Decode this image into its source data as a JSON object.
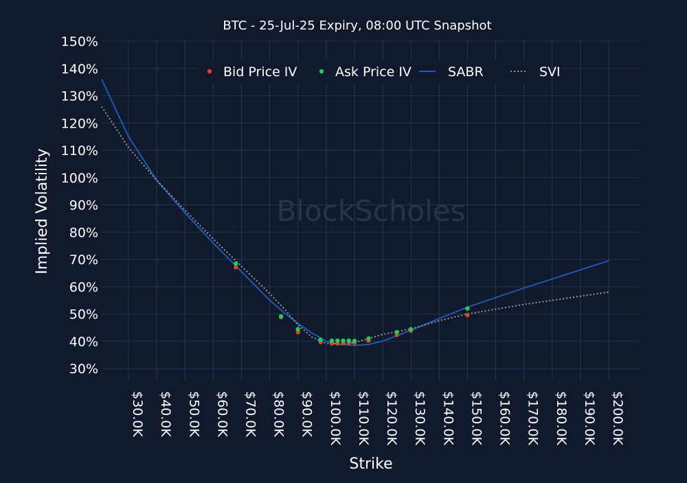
{
  "chart_data": {
    "type": "scatter",
    "title": "BTC - 25-Jul-25 Expiry, 08:00 UTC Snapshot",
    "xlabel": "Strike",
    "ylabel": "Implied Volatility",
    "watermark": "BlockScholes",
    "xlim": [
      20.5,
      210.7
    ],
    "ylim": [
      25.5,
      150
    ],
    "grid": true,
    "legend_position": "top-center",
    "x_ticks": [
      30,
      40,
      50,
      60,
      70,
      80,
      90,
      100,
      110,
      120,
      130,
      140,
      150,
      160,
      170,
      180,
      190,
      200
    ],
    "x_tick_labels": [
      "$30.0K",
      "$40.0K",
      "$50.0K",
      "$60.0K",
      "$70.0K",
      "$80.0K",
      "$90.0K",
      "$100.0K",
      "$110.0K",
      "$120.0K",
      "$130.0K",
      "$140.0K",
      "$150.0K",
      "$160.0K",
      "$170.0K",
      "$180.0K",
      "$190.0K",
      "$200.0K"
    ],
    "y_ticks": [
      30,
      40,
      50,
      60,
      70,
      80,
      90,
      100,
      110,
      120,
      130,
      140,
      150
    ],
    "y_tick_labels": [
      "30%",
      "40%",
      "50%",
      "60%",
      "70%",
      "80%",
      "90%",
      "100%",
      "110%",
      "120%",
      "130%",
      "140%",
      "150%"
    ],
    "series": [
      {
        "name": "Bid Price IV",
        "kind": "points",
        "color": "#e0402a",
        "x": [
          68,
          84,
          90,
          98,
          102,
          104,
          106,
          108,
          110,
          115,
          125,
          130,
          150
        ],
        "y": [
          67.1,
          48.8,
          43.3,
          39.7,
          39.2,
          39.2,
          39.4,
          39.4,
          39.5,
          40.2,
          42.3,
          43.9,
          49.6
        ]
      },
      {
        "name": "Ask Price IV",
        "kind": "points",
        "color": "#22cc55",
        "x": [
          68,
          84,
          90,
          98,
          102,
          104,
          106,
          108,
          110,
          115,
          125,
          130,
          150
        ],
        "y": [
          68.4,
          49.1,
          44.4,
          40.5,
          40.2,
          40.2,
          40.2,
          40.2,
          40.1,
          41.0,
          43.3,
          44.4,
          52.0
        ]
      },
      {
        "name": "SABR",
        "kind": "line",
        "color": "#1f5fbf",
        "x": [
          20.5,
          30,
          40,
          50,
          60,
          70,
          80,
          85,
          90,
          95,
          100,
          105,
          110,
          115,
          120,
          130,
          140,
          150,
          170,
          200,
          200
        ],
        "y": [
          136,
          115,
          99,
          87,
          76,
          65.5,
          55,
          50.5,
          46.5,
          43,
          40,
          38.8,
          38.5,
          38.8,
          40,
          44,
          48.3,
          52.5,
          59.5,
          69.5,
          69.5
        ]
      },
      {
        "name": "SVI",
        "kind": "dotted",
        "color": "#9a9a9a",
        "x": [
          20.5,
          30,
          40,
          50,
          60,
          70,
          80,
          85,
          90,
          95,
          100,
          105,
          110,
          115,
          120,
          130,
          140,
          150,
          170,
          200
        ],
        "y": [
          126,
          111,
          99,
          88,
          77.5,
          67.5,
          57.5,
          52,
          46,
          41.5,
          39.2,
          39,
          39.5,
          41,
          42.5,
          44.5,
          47.5,
          50,
          53.5,
          58
        ]
      }
    ]
  }
}
